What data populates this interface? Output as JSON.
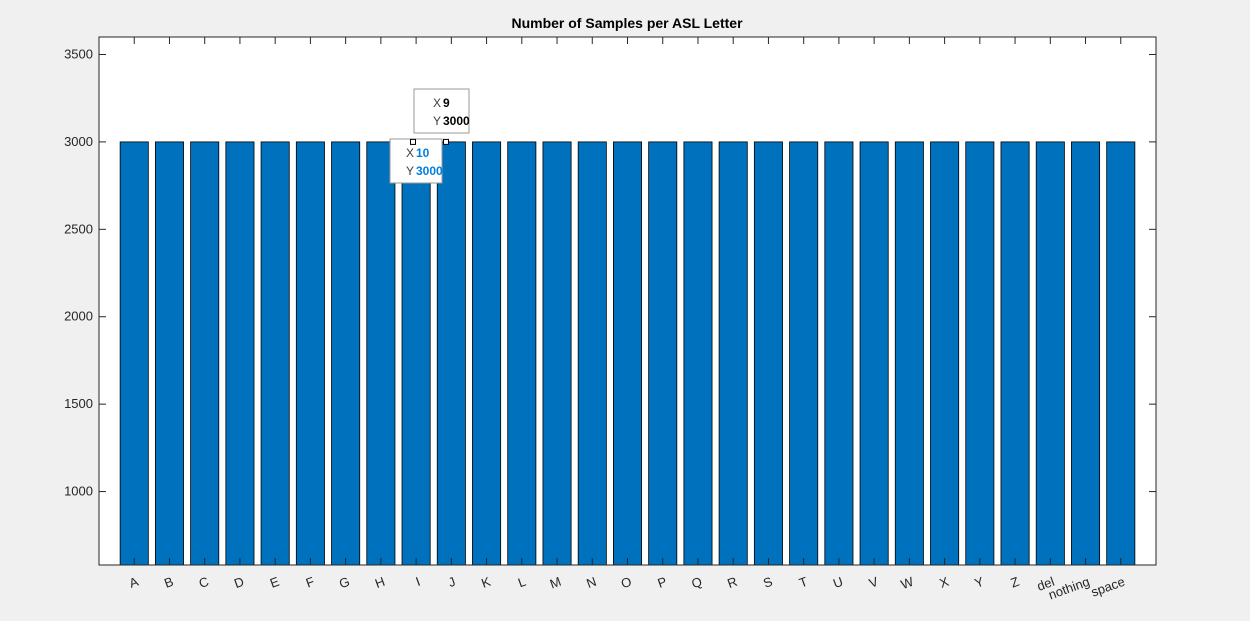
{
  "chart_data": {
    "type": "bar",
    "title": "Number of Samples per ASL Letter",
    "xlabel": "",
    "ylabel": "",
    "categories": [
      "A",
      "B",
      "C",
      "D",
      "E",
      "F",
      "G",
      "H",
      "I",
      "J",
      "K",
      "L",
      "M",
      "N",
      "O",
      "P",
      "Q",
      "R",
      "S",
      "T",
      "U",
      "V",
      "W",
      "X",
      "Y",
      "Z",
      "del",
      "nothing",
      "space"
    ],
    "values": [
      3000,
      3000,
      3000,
      3000,
      3000,
      3000,
      3000,
      3000,
      3000,
      3000,
      3000,
      3000,
      3000,
      3000,
      3000,
      3000,
      3000,
      3000,
      3000,
      3000,
      3000,
      3000,
      3000,
      3000,
      3000,
      3000,
      3000,
      3000,
      3000
    ],
    "ylim": [
      580,
      3600
    ],
    "yticks": [
      1000,
      1500,
      2000,
      2500,
      3000,
      3500
    ],
    "grid": false,
    "bar_color": "#0072BD",
    "datatips": [
      {
        "x_label": "X",
        "x": "9",
        "y_label": "Y",
        "y": "3000",
        "color": "#000000"
      },
      {
        "x_label": "X",
        "x": "10",
        "y_label": "Y",
        "y": "3000",
        "color": "#0080E0"
      }
    ]
  }
}
